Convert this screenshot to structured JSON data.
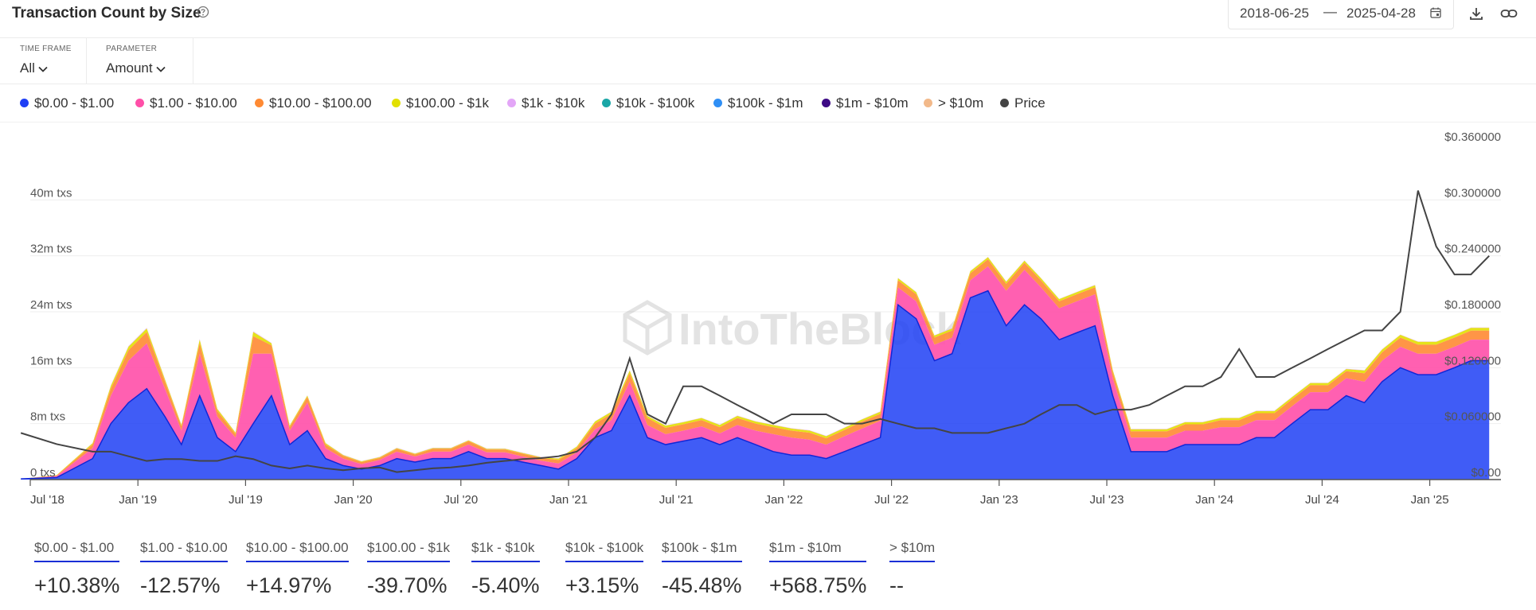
{
  "header": {
    "title": "Transaction Count by Size",
    "date_start": "2018-06-25",
    "date_separator": "—",
    "date_end": "2025-04-28"
  },
  "controls": {
    "time_frame_label": "TIME FRAME",
    "time_frame_value": "All",
    "parameter_label": "PARAMETER",
    "parameter_value": "Amount"
  },
  "legend": [
    {
      "label": "$0.00 - $1.00",
      "color": "#1f3ff5"
    },
    {
      "label": "$1.00 - $10.00",
      "color": "#ff4fa8"
    },
    {
      "label": "$10.00 - $100.00",
      "color": "#ff8a33"
    },
    {
      "label": "$100.00 - $1k",
      "color": "#e2e000"
    },
    {
      "label": "$1k - $10k",
      "color": "#e3a6f7"
    },
    {
      "label": "$10k - $100k",
      "color": "#1aa6a6"
    },
    {
      "label": "$100k - $1m",
      "color": "#2f8ff5"
    },
    {
      "label": "$1m - $10m",
      "color": "#3d0a85"
    },
    {
      "label": "> $10m",
      "color": "#f2b98a"
    },
    {
      "label": "Price",
      "color": "#444444"
    }
  ],
  "watermark": "IntoTheBlock",
  "chart_data": {
    "type": "area",
    "stacked": true,
    "grid": true,
    "legend_position": "top",
    "x_ticks": [
      "Jul '18",
      "Jan '19",
      "Jul '19",
      "Jan '20",
      "Jul '20",
      "Jan '21",
      "Jul '21",
      "Jan '22",
      "Jul '22",
      "Jan '23",
      "Jul '23",
      "Jan '24",
      "Jul '24",
      "Jan '25"
    ],
    "y_ticks_left": [
      "0 txs",
      "8m txs",
      "16m txs",
      "24m txs",
      "32m txs",
      "40m txs"
    ],
    "y_ticks_right": [
      "$0.00",
      "$0.060000",
      "$0.120000",
      "$0.180000",
      "$0.240000",
      "$0.300000",
      "$0.360000"
    ],
    "ylim_left_millions": [
      0,
      48
    ],
    "ylim_right": [
      0,
      0.36
    ],
    "x": [
      "2018-06",
      "2018-08",
      "2018-10",
      "2018-11",
      "2018-12",
      "2019-01",
      "2019-02",
      "2019-03",
      "2019-04",
      "2019-05",
      "2019-06",
      "2019-07",
      "2019-08",
      "2019-09",
      "2019-10",
      "2019-11",
      "2019-12",
      "2020-01",
      "2020-02",
      "2020-03",
      "2020-04",
      "2020-05",
      "2020-06",
      "2020-07",
      "2020-08",
      "2020-09",
      "2020-10",
      "2020-11",
      "2020-12",
      "2021-01",
      "2021-02",
      "2021-03",
      "2021-04",
      "2021-05",
      "2021-06",
      "2021-07",
      "2021-08",
      "2021-09",
      "2021-10",
      "2021-11",
      "2021-12",
      "2022-01",
      "2022-02",
      "2022-03",
      "2022-04",
      "2022-05",
      "2022-06",
      "2022-07",
      "2022-08",
      "2022-09",
      "2022-10",
      "2022-11",
      "2022-12",
      "2023-01",
      "2023-02",
      "2023-03",
      "2023-04",
      "2023-05",
      "2023-06",
      "2023-07",
      "2023-08",
      "2023-09",
      "2023-10",
      "2023-11",
      "2023-12",
      "2024-01",
      "2024-02",
      "2024-03",
      "2024-04",
      "2024-05",
      "2024-06",
      "2024-07",
      "2024-08",
      "2024-09",
      "2024-10",
      "2024-11",
      "2024-12",
      "2025-01",
      "2025-02",
      "2025-03",
      "2025-04"
    ],
    "series": [
      {
        "name": "$0.00 - $1.00",
        "unit": "m txs",
        "values": [
          0.1,
          0.3,
          3,
          8,
          11,
          13,
          9,
          5,
          12,
          6,
          4,
          8,
          12,
          5,
          7,
          3,
          2,
          1.5,
          2,
          3,
          2.5,
          3,
          3,
          4,
          3,
          3,
          2.5,
          2,
          1.5,
          3,
          6,
          7,
          12,
          6,
          5,
          5.5,
          6,
          5,
          6,
          5,
          4,
          3.5,
          3.5,
          3,
          4,
          5,
          6,
          25,
          23,
          17,
          18,
          26,
          27,
          22,
          25,
          23,
          20,
          21,
          22,
          12,
          4,
          4,
          4,
          5,
          5,
          5,
          5,
          6,
          6,
          8,
          10,
          10,
          12,
          11,
          14,
          16,
          15,
          15,
          16,
          17,
          17
        ]
      },
      {
        "name": "$1.00 - $10.00",
        "unit": "m txs",
        "values": [
          0,
          0.2,
          1.5,
          4,
          6,
          6.5,
          4,
          2,
          6,
          3,
          2,
          10,
          6,
          2,
          4,
          1.5,
          1,
          0.7,
          0.8,
          1,
          0.8,
          1,
          1,
          1,
          0.9,
          0.9,
          0.8,
          0.7,
          0.8,
          0.9,
          1.2,
          1.5,
          2,
          1.8,
          1.5,
          1.5,
          1.6,
          1.6,
          1.8,
          2,
          2.5,
          2.5,
          2.2,
          2,
          2.2,
          2.3,
          2.4,
          2.5,
          2.5,
          2.3,
          2.3,
          2.5,
          3.5,
          5,
          5,
          4.5,
          4.5,
          4.5,
          4.5,
          2.5,
          2,
          2,
          2,
          2,
          2,
          2.5,
          2.5,
          2.5,
          2.5,
          2.5,
          2.5,
          2.5,
          2.5,
          3,
          3,
          3,
          3,
          3,
          3,
          3,
          3
        ]
      },
      {
        "name": "$10.00 - $100.00",
        "unit": "m txs",
        "values": [
          0,
          0.1,
          0.5,
          1,
          1.5,
          1.6,
          1,
          0.6,
          1.5,
          0.8,
          0.5,
          2.5,
          1.2,
          0.5,
          0.8,
          0.5,
          0.4,
          0.3,
          0.3,
          0.4,
          0.3,
          0.4,
          0.4,
          0.5,
          0.4,
          0.4,
          0.4,
          0.4,
          0.5,
          0.6,
          0.8,
          0.9,
          1.2,
          1,
          0.9,
          0.9,
          0.9,
          0.9,
          1,
          1,
          1,
          1,
          1,
          0.9,
          0.9,
          1,
          1,
          1,
          1,
          1,
          1,
          1,
          1,
          1,
          1,
          1,
          1,
          1,
          1,
          0.9,
          0.9,
          0.9,
          0.9,
          0.9,
          0.9,
          1,
          1,
          1,
          1,
          1,
          1,
          1,
          1,
          1.2,
          1.2,
          1.3,
          1.3,
          1.3,
          1.3,
          1.3,
          1.3
        ]
      },
      {
        "name": "$100.00 - $1k",
        "unit": "m txs",
        "values": [
          0,
          0.05,
          0.2,
          0.4,
          0.5,
          0.5,
          0.3,
          0.2,
          0.5,
          0.3,
          0.2,
          0.6,
          0.3,
          0.2,
          0.2,
          0.2,
          0.1,
          0.1,
          0.1,
          0.1,
          0.1,
          0.1,
          0.1,
          0.1,
          0.1,
          0.1,
          0.1,
          0.1,
          0.2,
          0.2,
          0.3,
          0.3,
          0.4,
          0.3,
          0.3,
          0.3,
          0.3,
          0.3,
          0.3,
          0.3,
          0.3,
          0.3,
          0.3,
          0.3,
          0.3,
          0.3,
          0.3,
          0.3,
          0.3,
          0.3,
          0.3,
          0.3,
          0.3,
          0.3,
          0.3,
          0.3,
          0.3,
          0.3,
          0.3,
          0.3,
          0.3,
          0.3,
          0.3,
          0.3,
          0.3,
          0.3,
          0.3,
          0.3,
          0.3,
          0.3,
          0.3,
          0.3,
          0.3,
          0.4,
          0.4,
          0.4,
          0.4,
          0.4,
          0.4,
          0.4,
          0.4
        ]
      },
      {
        "name": "$1k - $10k",
        "unit": "m txs",
        "values": [
          0,
          0,
          0.05,
          0.1,
          0.1,
          0.1,
          0.1,
          0.05,
          0.1,
          0.05,
          0.05,
          0.1,
          0.05,
          0.05,
          0.05,
          0.05,
          0.05,
          0.05,
          0.05,
          0.05,
          0.05,
          0.05,
          0.05,
          0.05,
          0.05,
          0.05,
          0.05,
          0.05,
          0.05,
          0.05,
          0.05,
          0.05,
          0.05,
          0.05,
          0.05,
          0.05,
          0.05,
          0.05,
          0.05,
          0.05,
          0.05,
          0.05,
          0.05,
          0.05,
          0.05,
          0.05,
          0.05,
          0.05,
          0.05,
          0.05,
          0.05,
          0.05,
          0.05,
          0.05,
          0.05,
          0.05,
          0.05,
          0.05,
          0.05,
          0.05,
          0.05,
          0.05,
          0.05,
          0.05,
          0.05,
          0.05,
          0.05,
          0.05,
          0.05,
          0.05,
          0.05,
          0.05,
          0.05,
          0.05,
          0.05,
          0.05,
          0.05,
          0.05,
          0.05,
          0.05,
          0.05
        ]
      }
    ],
    "price": {
      "name": "Price",
      "unit": "$",
      "values": [
        0.05,
        0.038,
        0.03,
        0.03,
        0.025,
        0.02,
        0.022,
        0.022,
        0.02,
        0.02,
        0.025,
        0.022,
        0.015,
        0.012,
        0.015,
        0.012,
        0.01,
        0.012,
        0.013,
        0.008,
        0.01,
        0.012,
        0.013,
        0.015,
        0.018,
        0.02,
        0.022,
        0.023,
        0.025,
        0.03,
        0.045,
        0.07,
        0.13,
        0.07,
        0.06,
        0.1,
        0.1,
        0.09,
        0.08,
        0.07,
        0.06,
        0.07,
        0.07,
        0.07,
        0.06,
        0.06,
        0.065,
        0.06,
        0.055,
        0.055,
        0.05,
        0.05,
        0.05,
        0.055,
        0.06,
        0.07,
        0.08,
        0.08,
        0.07,
        0.075,
        0.075,
        0.08,
        0.09,
        0.1,
        0.1,
        0.11,
        0.14,
        0.11,
        0.11,
        0.12,
        0.13,
        0.14,
        0.15,
        0.16,
        0.16,
        0.18,
        0.31,
        0.25,
        0.22,
        0.22,
        0.24
      ]
    }
  },
  "stats": [
    {
      "label": "$0.00 - $1.00",
      "value": "+10.38%"
    },
    {
      "label": "$1.00 - $10.00",
      "value": "-12.57%"
    },
    {
      "label": "$10.00 - $100.00",
      "value": "+14.97%"
    },
    {
      "label": "$100.00 - $1k",
      "value": "-39.70%"
    },
    {
      "label": "$1k - $10k",
      "value": "-5.40%"
    },
    {
      "label": "$10k - $100k",
      "value": "+3.15%"
    },
    {
      "label": "$100k - $1m",
      "value": "-45.48%"
    },
    {
      "label": "$1m - $10m",
      "value": "+568.75%"
    },
    {
      "label": "> $10m",
      "value": "--"
    }
  ]
}
